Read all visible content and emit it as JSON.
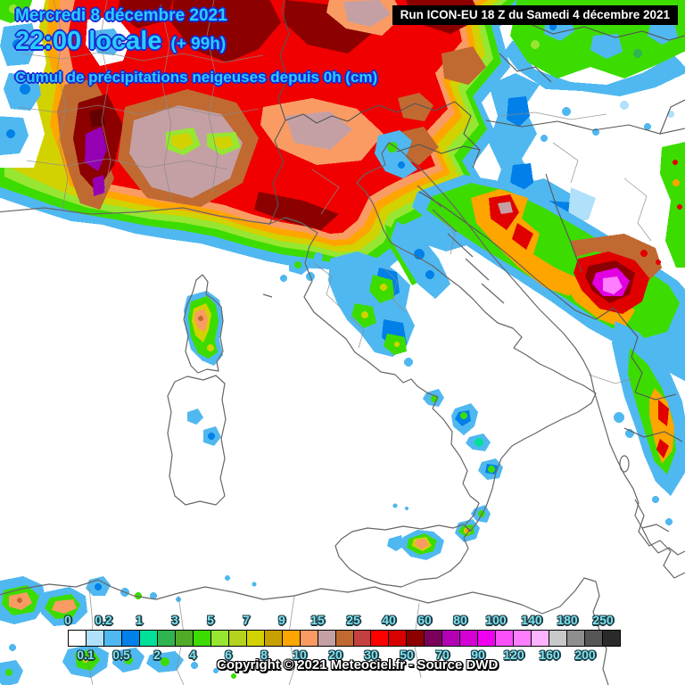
{
  "header": {
    "date_line": "Mercredi 8 décembre 2021",
    "time_line": "22:00 locale",
    "forecast_offset": "(+ 99h)",
    "subtitle": "Cumul de précipitations neigeuses depuis 0h (cm)"
  },
  "run_info": {
    "label": "Run ICON-EU 18 Z du Samedi 4 décembre 2021"
  },
  "copyright": "Copyright © 2021 Meteociel.fr - Source DWD",
  "legend": {
    "unit": "cm",
    "boundaries": [
      "0",
      "0.1",
      "0.2",
      "0.5",
      "1",
      "2",
      "3",
      "4",
      "5",
      "6",
      "7",
      "8",
      "9",
      "10",
      "15",
      "20",
      "25",
      "30",
      "40",
      "50",
      "60",
      "70",
      "80",
      "90",
      "100",
      "120",
      "140",
      "160",
      "180",
      "200",
      "250"
    ],
    "colors": [
      "#ffffff",
      "#b0e0fa",
      "#50b8f0",
      "#0080e8",
      "#00e098",
      "#30b450",
      "#50aa28",
      "#3cdc00",
      "#96e632",
      "#b4d21e",
      "#d2d200",
      "#c8a000",
      "#ffa500",
      "#fa9b64",
      "#c4a0a4",
      "#c06a32",
      "#c44040",
      "#ff0000",
      "#d80000",
      "#8c0000",
      "#7a005a",
      "#b400b4",
      "#d400d4",
      "#f000f0",
      "#fa50fa",
      "#ff7dff",
      "#ffb3ff",
      "#c8c8c8",
      "#8e8e8e",
      "#565656",
      "#2a2a2a"
    ]
  },
  "theme": {
    "header_fill": "#29cdff",
    "header_outline": "#1b2ad2",
    "legend_label": "#7fe3ef",
    "label_outline": "#1c3a42",
    "runinfo_bg": "#000000",
    "runinfo_fg": "#ffffff",
    "copyright_fill": "#ffffff",
    "copyright_outline": "#000000"
  }
}
